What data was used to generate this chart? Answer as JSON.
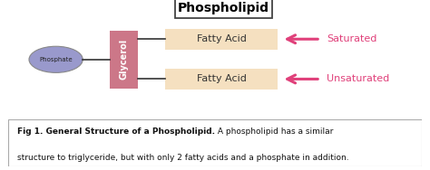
{
  "title": "Phospholipid",
  "background_color": "#ffffff",
  "phosphate_color": "#9999cc",
  "phosphate_border": "#888888",
  "phosphate_label": "Phosphate",
  "phosphate_fontsize": 5,
  "glycerol_color": "#cc7788",
  "glycerol_label": "Glycerol",
  "glycerol_fontsize": 7,
  "fatty_acid_color": "#f5e0c0",
  "fatty_acid_label": "Fatty Acid",
  "fatty_acid_fontsize": 8,
  "saturated_label": "Saturated",
  "unsaturated_label": "Unsaturated",
  "arrow_color": "#e0407a",
  "annotation_fontsize": 8,
  "caption_bold": "Fig 1. General Structure of a Phospholipid.",
  "caption_normal": " A phospholipid has a similar structure to triglyceride, but with only 2 fatty acids and a phosphate in addition.",
  "caption_fontsize": 6.5,
  "title_fontsize": 10,
  "line_color": "#333333"
}
